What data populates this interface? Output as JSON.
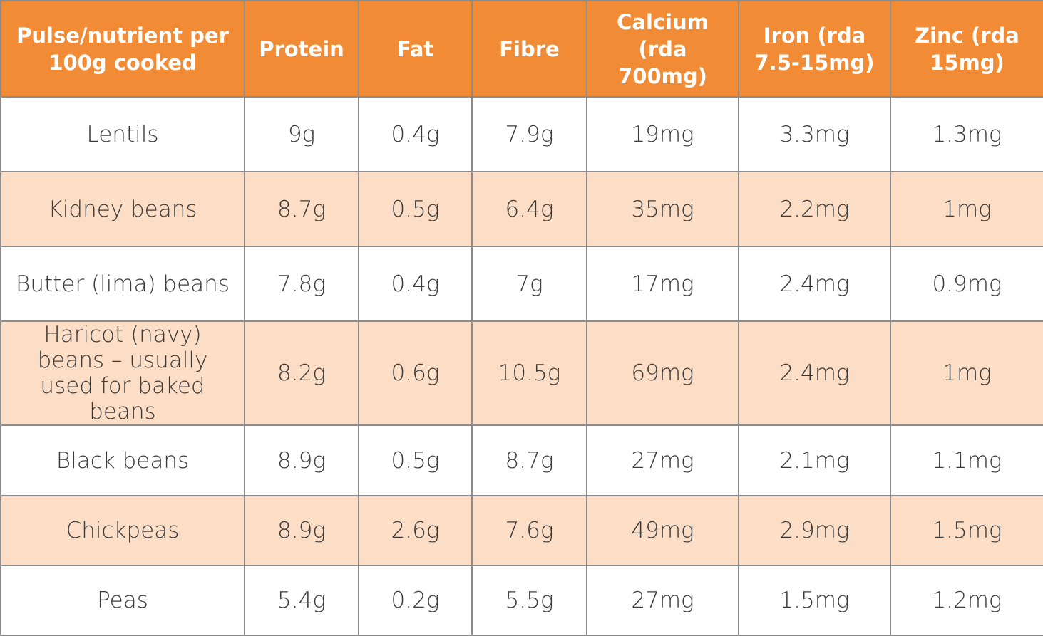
{
  "table": {
    "header": [
      "Pulse/nutrient per 100g cooked",
      "Protein",
      "Fat",
      "Fibre",
      "Calcium (rda 700mg)",
      "Iron (rda 7.5-15mg)",
      "Zinc (rda 15mg)"
    ],
    "rows": [
      [
        "Lentils",
        "9g",
        "0.4g",
        "7.9g",
        "19mg",
        "3.3mg",
        "1.3mg"
      ],
      [
        "Kidney beans",
        "8.7g",
        "0.5g",
        "6.4g",
        "35mg",
        "2.2mg",
        "1mg"
      ],
      [
        "Butter (lima) beans",
        "7.8g",
        "0.4g",
        "7g",
        "17mg",
        "2.4mg",
        "0.9mg"
      ],
      [
        "Haricot (navy) beans – usually used for baked beans",
        "8.2g",
        "0.6g",
        "10.5g",
        "69mg",
        "2.4mg",
        "1mg"
      ],
      [
        "Black beans",
        "8.9g",
        "0.5g",
        "8.7g",
        "27mg",
        "2.1mg",
        "1.1mg"
      ],
      [
        "Chickpeas",
        "8.9g",
        "2.6g",
        "7.6g",
        "49mg",
        "2.9mg",
        "1.5mg"
      ],
      [
        "Peas",
        "5.4g",
        "0.2g",
        "5.5g",
        "27mg",
        "1.5mg",
        "1.2mg"
      ]
    ]
  }
}
